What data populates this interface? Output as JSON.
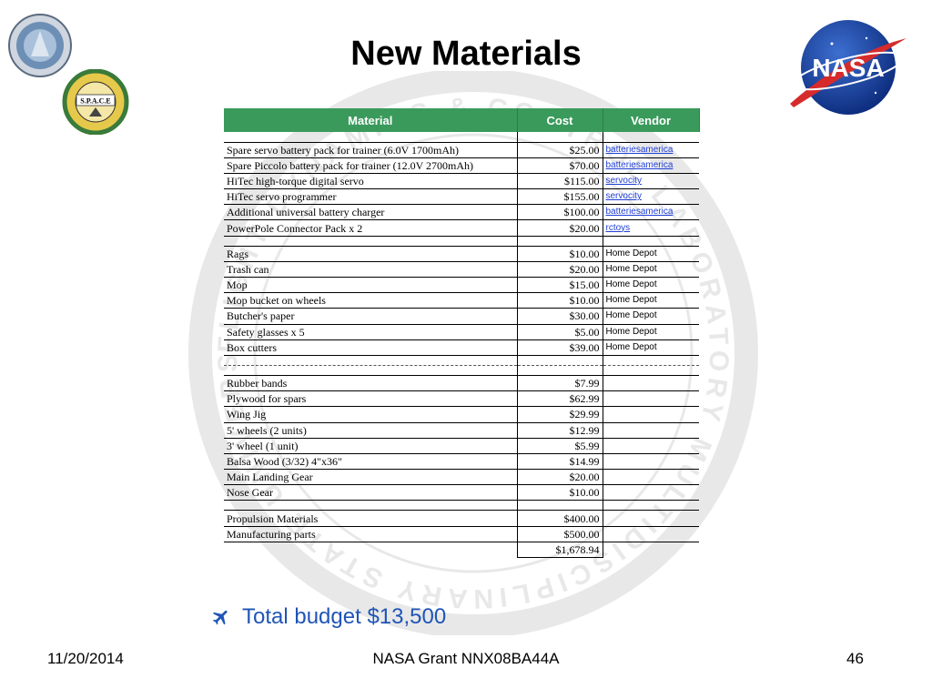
{
  "title": "New Materials",
  "logos": {
    "left_top": "institution-seal",
    "left_mid_text": "S.P.A.C.E",
    "nasa_text": "NASA"
  },
  "watermark_text": "FLIGHT DYNAMICS & CONTROL LABORATORY MULTIDISCIPLINARY STATE UNIVERSITY",
  "table": {
    "headers": [
      "Material",
      "Cost",
      "Vendor"
    ],
    "header_color": "#3a9a5b",
    "link_color": "#1f3fd6",
    "rows": [
      {
        "type": "gap"
      },
      {
        "material": "Spare servo battery pack for trainer (6.0V 1700mAh)",
        "cost": "$25.00",
        "vendor": "batteriesamerica",
        "link": true
      },
      {
        "material": "Spare Piccolo battery pack for trainer (12.0V 2700mAh)",
        "cost": "$70.00",
        "vendor": "batteriesamerica",
        "link": true
      },
      {
        "material": "HiTec high-torque digital servo",
        "cost": "$115.00",
        "vendor": "servocity",
        "link": true
      },
      {
        "material": "HiTec servo programmer",
        "cost": "$155.00",
        "vendor": "servocity",
        "link": true
      },
      {
        "material": "Additional universal battery charger",
        "cost": "$100.00",
        "vendor": "batteriesamerica",
        "link": true
      },
      {
        "material": "PowerPole Connector Pack x 2",
        "cost": "$20.00",
        "vendor": "rctoys",
        "link": true
      },
      {
        "type": "gap"
      },
      {
        "material": "Rags",
        "cost": "$10.00",
        "vendor": "Home Depot",
        "link": false
      },
      {
        "material": "Trash can",
        "cost": "$20.00",
        "vendor": "Home Depot",
        "link": false
      },
      {
        "material": "Mop",
        "cost": "$15.00",
        "vendor": "Home Depot",
        "link": false
      },
      {
        "material": "Mop bucket on wheels",
        "cost": "$10.00",
        "vendor": "Home Depot",
        "link": false
      },
      {
        "material": "Butcher's paper",
        "cost": "$30.00",
        "vendor": "Home Depot",
        "link": false
      },
      {
        "material": "Safety glasses x 5",
        "cost": "$5.00",
        "vendor": "Home Depot",
        "link": false
      },
      {
        "material": "Box cutters",
        "cost": "$39.00",
        "vendor": "Home Depot",
        "link": false
      },
      {
        "type": "dashed"
      },
      {
        "type": "gap"
      },
      {
        "material": "Rubber bands",
        "cost": "$7.99",
        "vendor": "",
        "link": false
      },
      {
        "material": "Plywood for spars",
        "cost": "$62.99",
        "vendor": "",
        "link": false
      },
      {
        "material": "Wing Jig",
        "cost": "$29.99",
        "vendor": "",
        "link": false
      },
      {
        "material": "5' wheels (2 units)",
        "cost": "$12.99",
        "vendor": "",
        "link": false
      },
      {
        "material": "3' wheel (1 unit)",
        "cost": "$5.99",
        "vendor": "",
        "link": false
      },
      {
        "material": "Balsa Wood (3/32) 4\"x36\"",
        "cost": "$14.99",
        "vendor": "",
        "link": false
      },
      {
        "material": "Main Landing Gear",
        "cost": "$20.00",
        "vendor": "",
        "link": false
      },
      {
        "material": "Nose Gear",
        "cost": "$10.00",
        "vendor": "",
        "link": false
      },
      {
        "type": "gap"
      },
      {
        "material": "Propulsion Materials",
        "cost": "$400.00",
        "vendor": "",
        "link": false
      },
      {
        "material": "Manufacturing parts",
        "cost": "$500.00",
        "vendor": "",
        "link": false
      },
      {
        "type": "total",
        "material": "",
        "cost": "$1,678.94",
        "vendor": ""
      }
    ]
  },
  "bullet": {
    "icon": "airplane-icon",
    "text": "Total budget $13,500",
    "color": "#1f55b7"
  },
  "footer": {
    "date": "11/20/2014",
    "grant": "NASA Grant NNX08BA44A",
    "page": "46"
  }
}
